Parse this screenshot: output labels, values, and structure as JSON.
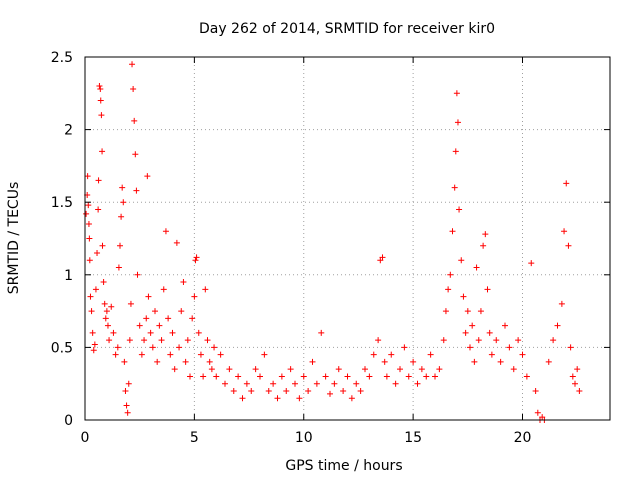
{
  "chart_data": {
    "type": "scatter",
    "title": "Day 262 of 2014, SRMTID for receiver kir0",
    "xlabel": "GPS time / hours",
    "ylabel": "SRMTID / TECUs",
    "xlim": [
      0,
      24
    ],
    "ylim": [
      0,
      2.5
    ],
    "x_ticks": [
      0,
      5,
      10,
      15,
      20
    ],
    "x_tick_labels": [
      "0",
      "5",
      "10",
      "15",
      "20"
    ],
    "y_ticks": [
      0,
      0.5,
      1,
      1.5,
      2,
      2.5
    ],
    "y_tick_labels": [
      "0",
      "0.5",
      "1",
      "1.5",
      "2",
      "2.5"
    ],
    "grid": true,
    "marker": "+",
    "series": [
      {
        "name": "SRMTID",
        "color": "#ff0000",
        "points": [
          [
            0.05,
            1.42
          ],
          [
            0.1,
            1.55
          ],
          [
            0.12,
            1.68
          ],
          [
            0.15,
            1.48
          ],
          [
            0.18,
            1.35
          ],
          [
            0.2,
            1.25
          ],
          [
            0.22,
            1.1
          ],
          [
            0.25,
            0.85
          ],
          [
            0.3,
            0.75
          ],
          [
            0.35,
            0.6
          ],
          [
            0.4,
            0.48
          ],
          [
            0.45,
            0.52
          ],
          [
            0.5,
            0.9
          ],
          [
            0.55,
            1.15
          ],
          [
            0.6,
            1.45
          ],
          [
            0.62,
            1.65
          ],
          [
            0.66,
            2.3
          ],
          [
            0.7,
            2.28
          ],
          [
            0.72,
            2.2
          ],
          [
            0.75,
            2.1
          ],
          [
            0.78,
            1.85
          ],
          [
            0.8,
            1.2
          ],
          [
            0.85,
            0.95
          ],
          [
            0.9,
            0.8
          ],
          [
            0.95,
            0.7
          ],
          [
            1.0,
            0.75
          ],
          [
            1.05,
            0.65
          ],
          [
            1.1,
            0.55
          ],
          [
            1.2,
            0.78
          ],
          [
            1.3,
            0.6
          ],
          [
            1.4,
            0.45
          ],
          [
            1.5,
            0.5
          ],
          [
            1.55,
            1.05
          ],
          [
            1.6,
            1.2
          ],
          [
            1.65,
            1.4
          ],
          [
            1.7,
            1.6
          ],
          [
            1.75,
            1.5
          ],
          [
            1.8,
            0.4
          ],
          [
            1.85,
            0.2
          ],
          [
            1.9,
            0.1
          ],
          [
            1.95,
            0.05
          ],
          [
            2.0,
            0.25
          ],
          [
            2.05,
            0.55
          ],
          [
            2.1,
            0.8
          ],
          [
            2.15,
            2.45
          ],
          [
            2.2,
            2.28
          ],
          [
            2.25,
            2.06
          ],
          [
            2.3,
            1.83
          ],
          [
            2.35,
            1.58
          ],
          [
            2.4,
            1.0
          ],
          [
            2.5,
            0.65
          ],
          [
            2.6,
            0.45
          ],
          [
            2.7,
            0.55
          ],
          [
            2.8,
            0.7
          ],
          [
            2.85,
            1.68
          ],
          [
            2.9,
            0.85
          ],
          [
            3.0,
            0.6
          ],
          [
            3.1,
            0.5
          ],
          [
            3.2,
            0.75
          ],
          [
            3.3,
            0.4
          ],
          [
            3.4,
            0.65
          ],
          [
            3.5,
            0.55
          ],
          [
            3.6,
            0.9
          ],
          [
            3.7,
            1.3
          ],
          [
            3.8,
            0.7
          ],
          [
            3.9,
            0.45
          ],
          [
            4.0,
            0.6
          ],
          [
            4.1,
            0.35
          ],
          [
            4.2,
            1.22
          ],
          [
            4.3,
            0.5
          ],
          [
            4.4,
            0.75
          ],
          [
            4.5,
            0.95
          ],
          [
            4.6,
            0.4
          ],
          [
            4.7,
            0.55
          ],
          [
            4.8,
            0.3
          ],
          [
            4.9,
            0.7
          ],
          [
            5.0,
            0.85
          ],
          [
            5.05,
            1.1
          ],
          [
            5.1,
            1.12
          ],
          [
            5.2,
            0.6
          ],
          [
            5.3,
            0.45
          ],
          [
            5.4,
            0.3
          ],
          [
            5.5,
            0.9
          ],
          [
            5.6,
            0.55
          ],
          [
            5.7,
            0.4
          ],
          [
            5.8,
            0.35
          ],
          [
            5.9,
            0.5
          ],
          [
            6.0,
            0.3
          ],
          [
            6.2,
            0.45
          ],
          [
            6.4,
            0.25
          ],
          [
            6.6,
            0.35
          ],
          [
            6.8,
            0.2
          ],
          [
            7.0,
            0.3
          ],
          [
            7.2,
            0.15
          ],
          [
            7.4,
            0.25
          ],
          [
            7.6,
            0.2
          ],
          [
            7.8,
            0.35
          ],
          [
            8.0,
            0.3
          ],
          [
            8.2,
            0.45
          ],
          [
            8.4,
            0.2
          ],
          [
            8.6,
            0.25
          ],
          [
            8.8,
            0.15
          ],
          [
            9.0,
            0.3
          ],
          [
            9.2,
            0.2
          ],
          [
            9.4,
            0.35
          ],
          [
            9.6,
            0.25
          ],
          [
            9.8,
            0.15
          ],
          [
            10.0,
            0.3
          ],
          [
            10.2,
            0.2
          ],
          [
            10.4,
            0.4
          ],
          [
            10.6,
            0.25
          ],
          [
            10.8,
            0.6
          ],
          [
            11.0,
            0.3
          ],
          [
            11.2,
            0.18
          ],
          [
            11.4,
            0.25
          ],
          [
            11.6,
            0.35
          ],
          [
            11.8,
            0.2
          ],
          [
            12.0,
            0.3
          ],
          [
            12.2,
            0.15
          ],
          [
            12.4,
            0.25
          ],
          [
            12.6,
            0.2
          ],
          [
            12.8,
            0.35
          ],
          [
            13.0,
            0.3
          ],
          [
            13.2,
            0.45
          ],
          [
            13.4,
            0.55
          ],
          [
            13.5,
            1.1
          ],
          [
            13.6,
            1.12
          ],
          [
            13.7,
            0.4
          ],
          [
            13.8,
            0.3
          ],
          [
            14.0,
            0.45
          ],
          [
            14.2,
            0.25
          ],
          [
            14.4,
            0.35
          ],
          [
            14.6,
            0.5
          ],
          [
            14.8,
            0.3
          ],
          [
            15.0,
            0.4
          ],
          [
            15.2,
            0.25
          ],
          [
            15.4,
            0.35
          ],
          [
            15.6,
            0.3
          ],
          [
            15.8,
            0.45
          ],
          [
            16.0,
            0.3
          ],
          [
            16.2,
            0.35
          ],
          [
            16.4,
            0.55
          ],
          [
            16.5,
            0.75
          ],
          [
            16.6,
            0.9
          ],
          [
            16.7,
            1.0
          ],
          [
            16.8,
            1.3
          ],
          [
            16.9,
            1.6
          ],
          [
            16.95,
            1.85
          ],
          [
            17.0,
            2.25
          ],
          [
            17.05,
            2.05
          ],
          [
            17.1,
            1.45
          ],
          [
            17.2,
            1.1
          ],
          [
            17.3,
            0.85
          ],
          [
            17.4,
            0.6
          ],
          [
            17.5,
            0.75
          ],
          [
            17.6,
            0.5
          ],
          [
            17.7,
            0.65
          ],
          [
            17.8,
            0.4
          ],
          [
            17.9,
            1.05
          ],
          [
            18.0,
            0.55
          ],
          [
            18.1,
            0.75
          ],
          [
            18.2,
            1.2
          ],
          [
            18.3,
            1.28
          ],
          [
            18.4,
            0.9
          ],
          [
            18.5,
            0.6
          ],
          [
            18.6,
            0.45
          ],
          [
            18.8,
            0.55
          ],
          [
            19.0,
            0.4
          ],
          [
            19.2,
            0.65
          ],
          [
            19.4,
            0.5
          ],
          [
            19.6,
            0.35
          ],
          [
            19.8,
            0.55
          ],
          [
            20.0,
            0.45
          ],
          [
            20.2,
            0.3
          ],
          [
            20.4,
            1.08
          ],
          [
            20.6,
            0.2
          ],
          [
            20.7,
            0.05
          ],
          [
            20.8,
            0.0
          ],
          [
            20.9,
            0.02
          ],
          [
            21.0,
            0.0
          ],
          [
            21.2,
            0.4
          ],
          [
            21.4,
            0.55
          ],
          [
            21.6,
            0.65
          ],
          [
            21.8,
            0.8
          ],
          [
            21.9,
            1.3
          ],
          [
            22.0,
            1.63
          ],
          [
            22.1,
            1.2
          ],
          [
            22.2,
            0.5
          ],
          [
            22.3,
            0.3
          ],
          [
            22.4,
            0.25
          ],
          [
            22.5,
            0.35
          ],
          [
            22.6,
            0.2
          ]
        ]
      }
    ]
  }
}
